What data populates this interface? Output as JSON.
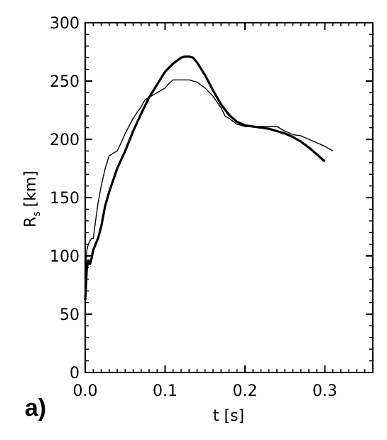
{
  "panel_label": "a)",
  "chart_data": {
    "type": "line",
    "xlabel": "t [s]",
    "ylabel": "R",
    "ylabel_subscript": "s",
    "ylabel_unit": "[km]",
    "xlim": [
      0.0,
      0.36
    ],
    "ylim": [
      0,
      300
    ],
    "xticks": [
      "0.0",
      "0.1",
      "0.2",
      "0.3"
    ],
    "xtick_values": [
      0.0,
      0.1,
      0.2,
      0.3
    ],
    "yticks": [
      "0",
      "50",
      "100",
      "150",
      "200",
      "250",
      "300"
    ],
    "ytick_values": [
      0,
      50,
      100,
      150,
      200,
      250,
      300
    ],
    "grid": false,
    "series": [
      {
        "style": "thick",
        "x": [
          0.0,
          0.002,
          0.004,
          0.006,
          0.008,
          0.01,
          0.013,
          0.016,
          0.02,
          0.025,
          0.03,
          0.04,
          0.05,
          0.06,
          0.07,
          0.08,
          0.09,
          0.1,
          0.11,
          0.12,
          0.125,
          0.13,
          0.135,
          0.14,
          0.15,
          0.16,
          0.17,
          0.18,
          0.19,
          0.2,
          0.21,
          0.22,
          0.23,
          0.24,
          0.25,
          0.26,
          0.27,
          0.28,
          0.29,
          0.3
        ],
        "y": [
          62,
          90,
          96,
          93,
          98,
          105,
          110,
          115,
          125,
          143,
          155,
          175,
          190,
          207,
          222,
          236,
          247,
          258,
          265,
          270,
          271,
          271,
          270,
          266,
          255,
          242,
          230,
          221,
          215,
          212,
          211,
          210,
          209,
          207,
          205,
          202,
          198,
          193,
          187,
          181
        ]
      },
      {
        "style": "thin",
        "x": [
          0.0,
          0.002,
          0.004,
          0.006,
          0.008,
          0.01,
          0.013,
          0.016,
          0.02,
          0.025,
          0.03,
          0.035,
          0.04,
          0.045,
          0.05,
          0.06,
          0.07,
          0.075,
          0.08,
          0.085,
          0.09,
          0.095,
          0.1,
          0.105,
          0.11,
          0.12,
          0.13,
          0.14,
          0.15,
          0.16,
          0.17,
          0.175,
          0.18,
          0.19,
          0.2,
          0.21,
          0.22,
          0.23,
          0.24,
          0.25,
          0.26,
          0.27,
          0.28,
          0.29,
          0.3,
          0.31
        ],
        "y": [
          70,
          105,
          110,
          113,
          115,
          115,
          130,
          145,
          160,
          175,
          186,
          188,
          190,
          197,
          205,
          218,
          228,
          234,
          236,
          238,
          240,
          242,
          244,
          248,
          251,
          251,
          251,
          249,
          244,
          237,
          227,
          220,
          218,
          213,
          211,
          211,
          211,
          211,
          211,
          207,
          204,
          203,
          200,
          197,
          194,
          190
        ]
      }
    ]
  }
}
